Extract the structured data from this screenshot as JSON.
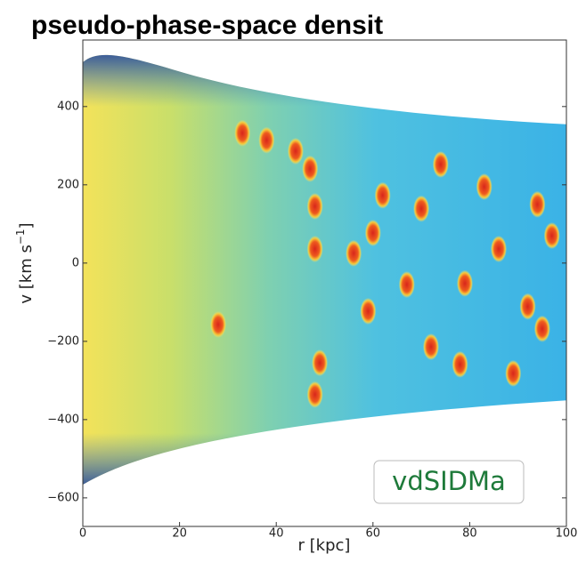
{
  "chart_data": {
    "type": "scatter",
    "title": "pseudo-phase-space densit",
    "xlabel": "r [kpc]",
    "ylabel": [
      "v [km s",
      "−1",
      "]"
    ],
    "annotation": "vdSIDMa",
    "xlim": [
      0,
      100
    ],
    "xticks": [
      0,
      20,
      40,
      60,
      80,
      100
    ],
    "ylim": [
      -673,
      570
    ],
    "yticks": [
      {
        "value": -600,
        "label": "−600"
      },
      {
        "value": -400,
        "label": "−400"
      },
      {
        "value": -200,
        "label": "−200"
      },
      0,
      200,
      400
    ],
    "color": "#e0301e",
    "x": [
      47,
      48,
      48,
      49,
      48,
      38,
      28,
      60,
      74,
      72,
      95,
      92,
      86,
      83,
      70,
      62,
      56,
      59,
      79,
      97,
      67,
      89,
      44,
      33,
      78,
      94
    ],
    "y": [
      241,
      145,
      36,
      -255,
      -336,
      314,
      -157,
      77,
      252,
      -214,
      -168,
      -111,
      36,
      195,
      139,
      173,
      25,
      -123,
      -52,
      70,
      -55,
      -282,
      286,
      332,
      -259,
      150
    ]
  }
}
